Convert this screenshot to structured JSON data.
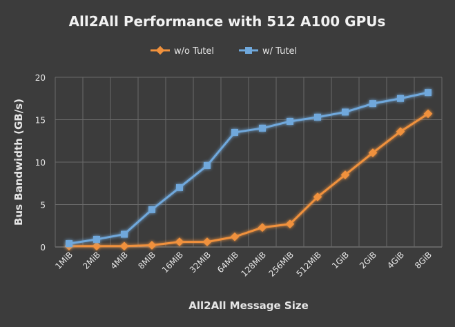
{
  "chart_data": {
    "type": "line",
    "title": "All2All Performance with 512 A100 GPUs",
    "xlabel": "All2All Message Size",
    "ylabel": "Bus Bandwidth (GB/s)",
    "categories": [
      "1MiB",
      "2MiB",
      "4MiB",
      "8MiB",
      "16MiB",
      "32MiB",
      "64MiB",
      "128MiB",
      "256MiB",
      "512MiB",
      "1GiB",
      "2GiB",
      "4GiB",
      "8GiB"
    ],
    "ylim": [
      0,
      20
    ],
    "yticks": [
      "0",
      "5",
      "10",
      "15",
      "20"
    ],
    "grid": true,
    "legend_position": "top",
    "series": [
      {
        "name": "w/o Tutel",
        "color": "#f0913c",
        "marker": "diamond",
        "values": [
          0.1,
          0.1,
          0.1,
          0.2,
          0.6,
          0.6,
          1.2,
          2.3,
          2.7,
          5.9,
          8.5,
          11.1,
          13.6,
          15.7
        ]
      },
      {
        "name": "w/ Tutel",
        "color": "#6fa8dc",
        "marker": "square",
        "values": [
          0.4,
          0.9,
          1.5,
          4.4,
          7.0,
          9.6,
          13.5,
          14.0,
          14.8,
          15.3,
          15.9,
          16.9,
          17.5,
          18.2
        ]
      }
    ]
  }
}
